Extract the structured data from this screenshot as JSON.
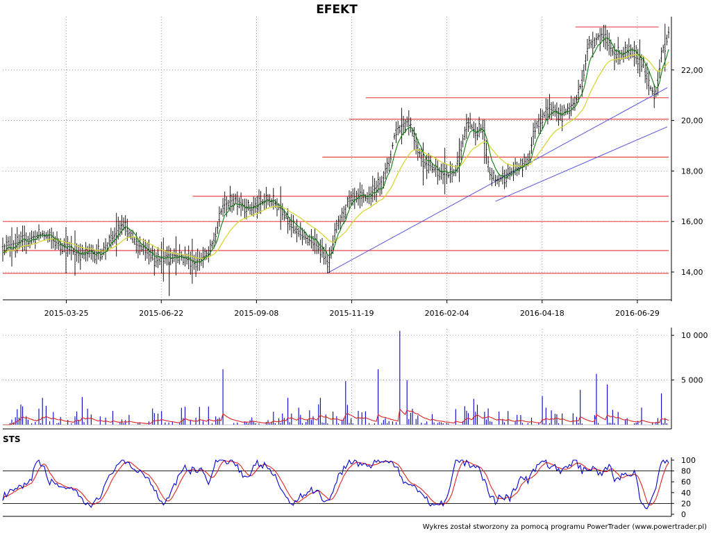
{
  "chart_data": [
    {
      "type": "candlestick",
      "title": "EFEKT",
      "x_tick_labels": [
        "2015-03-25",
        "2015-06-22",
        "2015-09-08",
        "2015-11-19",
        "2016-02-04",
        "2016-04-18",
        "2016-06-29"
      ],
      "y_tick_labels": [
        "14,00",
        "16,00",
        "18,00",
        "20,00",
        "22,00"
      ],
      "y_ticks": [
        14,
        16,
        18,
        20,
        22
      ],
      "ylim": [
        12.9,
        24.0
      ],
      "grid": true,
      "horizontal_levels": [
        13.95,
        14.85,
        16.0,
        17.0,
        18.55,
        20.05,
        20.9,
        23.7
      ],
      "trend_lines": [
        {
          "from": [
            0.487,
            13.95
          ],
          "to": [
            0.998,
            21.3
          ]
        },
        {
          "from": [
            0.74,
            16.8
          ],
          "to": [
            0.998,
            19.75
          ]
        }
      ],
      "price_profile": [
        [
          0.0,
          15.0
        ],
        [
          0.03,
          15.2
        ],
        [
          0.06,
          15.5
        ],
        [
          0.08,
          15.2
        ],
        [
          0.1,
          14.9
        ],
        [
          0.12,
          14.7
        ],
        [
          0.15,
          14.8
        ],
        [
          0.17,
          15.5
        ],
        [
          0.18,
          15.9
        ],
        [
          0.2,
          15.1
        ],
        [
          0.22,
          14.9
        ],
        [
          0.23,
          14.4
        ],
        [
          0.25,
          14.7
        ],
        [
          0.27,
          14.6
        ],
        [
          0.29,
          14.4
        ],
        [
          0.31,
          14.7
        ],
        [
          0.32,
          15.5
        ],
        [
          0.33,
          16.6
        ],
        [
          0.35,
          16.9
        ],
        [
          0.37,
          16.5
        ],
        [
          0.38,
          16.6
        ],
        [
          0.4,
          16.9
        ],
        [
          0.42,
          16.5
        ],
        [
          0.44,
          15.6
        ],
        [
          0.46,
          15.3
        ],
        [
          0.48,
          14.9
        ],
        [
          0.49,
          14.3
        ],
        [
          0.5,
          15.6
        ],
        [
          0.52,
          16.8
        ],
        [
          0.55,
          17.0
        ],
        [
          0.57,
          17.6
        ],
        [
          0.58,
          18.3
        ],
        [
          0.59,
          19.6
        ],
        [
          0.61,
          20.0
        ],
        [
          0.63,
          18.4
        ],
        [
          0.65,
          18.1
        ],
        [
          0.67,
          17.8
        ],
        [
          0.68,
          18.0
        ],
        [
          0.69,
          19.0
        ],
        [
          0.7,
          20.0
        ],
        [
          0.71,
          19.5
        ],
        [
          0.72,
          19.7
        ],
        [
          0.73,
          18.0
        ],
        [
          0.74,
          17.6
        ],
        [
          0.76,
          17.9
        ],
        [
          0.78,
          18.2
        ],
        [
          0.79,
          18.5
        ],
        [
          0.8,
          19.8
        ],
        [
          0.82,
          20.5
        ],
        [
          0.84,
          20.2
        ],
        [
          0.86,
          20.7
        ],
        [
          0.87,
          21.6
        ],
        [
          0.88,
          23.0
        ],
        [
          0.9,
          23.4
        ],
        [
          0.92,
          22.6
        ],
        [
          0.94,
          22.7
        ],
        [
          0.95,
          22.5
        ],
        [
          0.96,
          22.4
        ],
        [
          0.97,
          21.4
        ],
        [
          0.98,
          21.0
        ],
        [
          0.99,
          22.6
        ],
        [
          1.0,
          23.5
        ]
      ],
      "series": [
        {
          "name": "",
          "color": "#000000",
          "kind": "ohlc"
        },
        {
          "name": "",
          "color": "#0a7d0a",
          "kind": "short moving average"
        },
        {
          "name": "",
          "color": "#d7d735",
          "kind": "long moving average"
        }
      ],
      "level_color": "#e8474c",
      "trend_color": "#5555dd"
    },
    {
      "type": "bar",
      "y_tick_labels": [
        "5 000",
        "10 000"
      ],
      "y_ticks": [
        5000,
        10000
      ],
      "ylim": [
        0,
        10400
      ],
      "series": [
        {
          "name": "",
          "color": "#0000cc",
          "kind": "volume bars"
        },
        {
          "name": "",
          "color": "#dd2222",
          "kind": "volume average"
        }
      ],
      "spikes": [
        [
          0.33,
          6200
        ],
        [
          0.565,
          6200
        ],
        [
          0.596,
          10500
        ],
        [
          0.514,
          4900
        ],
        [
          0.891,
          5700
        ],
        [
          0.907,
          4500
        ],
        [
          0.988,
          3500
        ],
        [
          0.607,
          5000
        ],
        [
          0.428,
          3000
        ],
        [
          0.478,
          3000
        ],
        [
          0.12,
          3100
        ],
        [
          0.06,
          3000
        ],
        [
          0.81,
          3200
        ],
        [
          0.866,
          3900
        ],
        [
          0.707,
          2900
        ]
      ]
    },
    {
      "type": "line",
      "title": "STS",
      "y_tick_labels": [
        "0",
        "20",
        "40",
        "60",
        "80",
        "100"
      ],
      "y_ticks": [
        0,
        20,
        40,
        60,
        80,
        100
      ],
      "ylim": [
        0,
        100
      ],
      "reference_levels": [
        20,
        80
      ],
      "series": [
        {
          "name": "",
          "color": "#0000cc",
          "kind": "%K"
        },
        {
          "name": "",
          "color": "#dd2222",
          "kind": "%D"
        }
      ],
      "k_profile": [
        [
          0.0,
          32
        ],
        [
          0.02,
          45
        ],
        [
          0.04,
          55
        ],
        [
          0.05,
          98
        ],
        [
          0.06,
          90
        ],
        [
          0.07,
          60
        ],
        [
          0.09,
          52
        ],
        [
          0.11,
          38
        ],
        [
          0.13,
          12
        ],
        [
          0.15,
          42
        ],
        [
          0.17,
          92
        ],
        [
          0.18,
          100
        ],
        [
          0.19,
          88
        ],
        [
          0.21,
          78
        ],
        [
          0.23,
          45
        ],
        [
          0.24,
          17
        ],
        [
          0.26,
          60
        ],
        [
          0.27,
          88
        ],
        [
          0.28,
          80
        ],
        [
          0.3,
          84
        ],
        [
          0.31,
          50
        ],
        [
          0.32,
          100
        ],
        [
          0.34,
          100
        ],
        [
          0.35,
          96
        ],
        [
          0.36,
          72
        ],
        [
          0.37,
          62
        ],
        [
          0.38,
          96
        ],
        [
          0.39,
          90
        ],
        [
          0.4,
          86
        ],
        [
          0.42,
          45
        ],
        [
          0.43,
          18
        ],
        [
          0.45,
          35
        ],
        [
          0.47,
          48
        ],
        [
          0.48,
          30
        ],
        [
          0.49,
          22
        ],
        [
          0.5,
          62
        ],
        [
          0.52,
          100
        ],
        [
          0.53,
          96
        ],
        [
          0.55,
          88
        ],
        [
          0.56,
          100
        ],
        [
          0.58,
          96
        ],
        [
          0.59,
          92
        ],
        [
          0.6,
          58
        ],
        [
          0.61,
          60
        ],
        [
          0.62,
          52
        ],
        [
          0.63,
          38
        ],
        [
          0.64,
          22
        ],
        [
          0.66,
          20
        ],
        [
          0.67,
          40
        ],
        [
          0.68,
          100
        ],
        [
          0.7,
          92
        ],
        [
          0.71,
          92
        ],
        [
          0.72,
          70
        ],
        [
          0.73,
          40
        ],
        [
          0.74,
          25
        ],
        [
          0.75,
          35
        ],
        [
          0.76,
          28
        ],
        [
          0.78,
          68
        ],
        [
          0.79,
          62
        ],
        [
          0.8,
          85
        ],
        [
          0.81,
          100
        ],
        [
          0.82,
          92
        ],
        [
          0.84,
          78
        ],
        [
          0.85,
          92
        ],
        [
          0.86,
          100
        ],
        [
          0.87,
          80
        ],
        [
          0.88,
          88
        ],
        [
          0.9,
          76
        ],
        [
          0.91,
          90
        ],
        [
          0.92,
          62
        ],
        [
          0.93,
          72
        ],
        [
          0.94,
          76
        ],
        [
          0.95,
          78
        ],
        [
          0.96,
          12
        ],
        [
          0.97,
          10
        ],
        [
          0.98,
          48
        ],
        [
          0.99,
          100
        ],
        [
          1.0,
          100
        ]
      ]
    }
  ],
  "footer": "Wykres został stworzony za pomocą programu PowerTrader (www.powertrader.pl)"
}
